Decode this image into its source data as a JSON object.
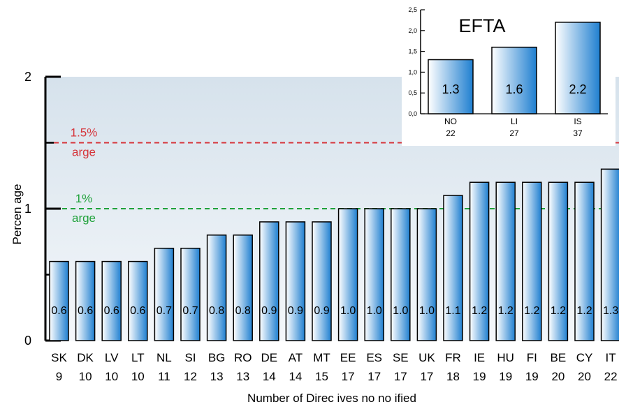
{
  "chart_data": [
    {
      "type": "bar",
      "ylabel": "Percen age",
      "xlabel": "Number of Direc ives no no ified",
      "ylim": [
        0,
        2
      ],
      "y_ticks": [
        "0",
        "1",
        "2"
      ],
      "categories": [
        "SK",
        "DK",
        "LV",
        "LT",
        "NL",
        "SI",
        "BG",
        "RO",
        "DE",
        "AT",
        "MT",
        "EE",
        "ES",
        "SE",
        "UK",
        "FR",
        "IE",
        "HU",
        "FI",
        "BE",
        "CY",
        "IT"
      ],
      "directives_notified": [
        "9",
        "10",
        "10",
        "10",
        "11",
        "12",
        "13",
        "13",
        "14",
        "14",
        "15",
        "17",
        "17",
        "17",
        "17",
        "18",
        "19",
        "19",
        "19",
        "20",
        "20",
        "22"
      ],
      "values": [
        0.6,
        0.6,
        0.6,
        0.6,
        0.7,
        0.7,
        0.8,
        0.8,
        0.9,
        0.9,
        0.9,
        1.0,
        1.0,
        1.0,
        1.0,
        1.1,
        1.2,
        1.2,
        1.2,
        1.2,
        1.2,
        1.3
      ],
      "value_labels": [
        "0.6",
        "0.6",
        "0.6",
        "0.6",
        "0.7",
        "0.7",
        "0.8",
        "0.8",
        "0.9",
        "0.9",
        "0.9",
        "1.0",
        "1.0",
        "1.0",
        "1.0",
        "1.1",
        "1.2",
        "1.2",
        "1.2",
        "1.2",
        "1.2",
        "1.3"
      ],
      "target_lines": [
        {
          "value": 1.5,
          "label": "1.5%",
          "sublabel": "arge",
          "color": "#d6343a"
        },
        {
          "value": 1.0,
          "label": "1%",
          "sublabel": "arge",
          "color": "#1fa23a"
        }
      ],
      "grid": false
    },
    {
      "type": "bar",
      "title": "EFTA",
      "ylim": [
        0,
        2.5
      ],
      "y_ticks": [
        "0,0",
        "0,5",
        "1,0",
        "1,5",
        "2,0",
        "2,5"
      ],
      "categories": [
        "NO",
        "LI",
        "IS"
      ],
      "directives_notified": [
        "22",
        "27",
        "37"
      ],
      "values": [
        1.3,
        1.6,
        2.2
      ],
      "value_labels": [
        "1.3",
        "1.6",
        "2.2"
      ]
    }
  ],
  "colors": {
    "bar_light": "#ffffff",
    "bar_dark": "#1f7fd0",
    "plot_background": "#d6e2ec",
    "axis": "#000000"
  }
}
